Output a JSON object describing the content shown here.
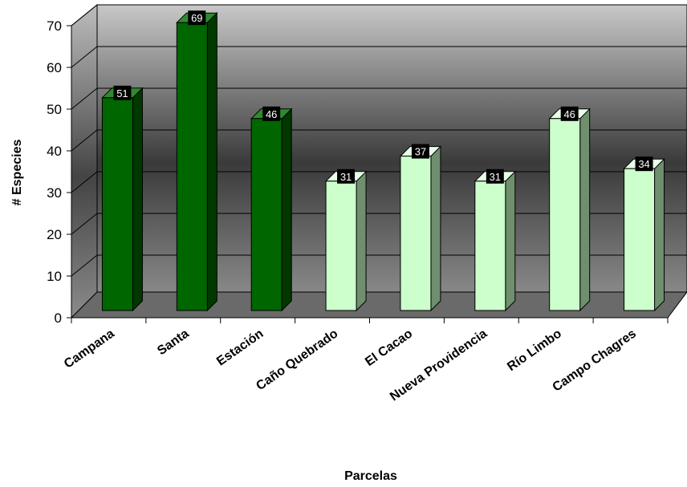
{
  "chart_data": {
    "type": "bar",
    "categories": [
      "Campana",
      "Santa",
      "Estación",
      "Caño Quebrado",
      "El Cacao",
      "Nueva Providencia",
      "Río Limbo",
      "Campo Chagres"
    ],
    "values": [
      51,
      69,
      46,
      31,
      37,
      31,
      46,
      34
    ],
    "xlabel": "Parcelas",
    "ylabel": "# Especies",
    "ylim": [
      0,
      70
    ],
    "yticks": [
      "0",
      "10",
      "20",
      "30",
      "40",
      "50",
      "60",
      "70"
    ],
    "grid": true,
    "legend": "none",
    "three_d": true
  },
  "colors": {
    "group_a_front": "#006600",
    "group_a_side": "#003800",
    "group_a_top": "#2f8a2f",
    "group_b_front": "#ccffcc",
    "group_b_side": "#6f8f6f",
    "group_b_top": "#e6ffe6",
    "bar_stroke": "#000000",
    "label_box": "#000000",
    "wall_light": "#c0c0c0",
    "wall_dark": "#3a3a3a",
    "floor": "#6a6a6a"
  },
  "bar_color_groups": [
    "a",
    "a",
    "a",
    "b",
    "b",
    "b",
    "b",
    "b"
  ]
}
